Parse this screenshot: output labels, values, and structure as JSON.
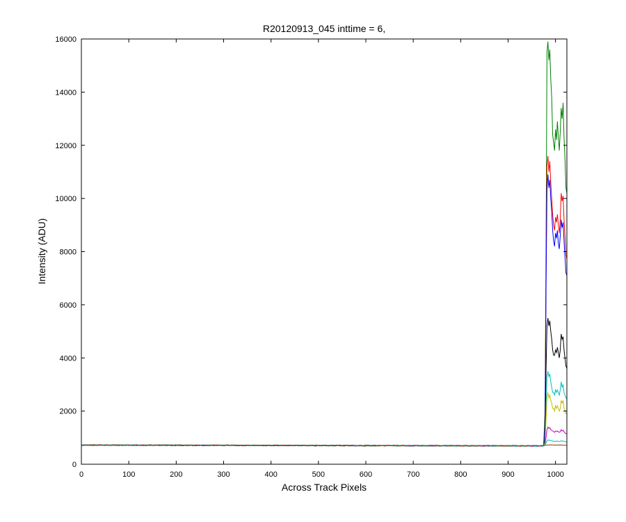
{
  "chart_data": {
    "type": "line",
    "title": "R20120913_045 inttime = 6,",
    "xlabel": "Across Track Pixels",
    "ylabel": "Intensity (ADU)",
    "xlim": [
      0,
      1024
    ],
    "ylim": [
      0,
      16000
    ],
    "xticks": [
      0,
      100,
      200,
      300,
      400,
      500,
      600,
      700,
      800,
      900,
      1000
    ],
    "yticks": [
      0,
      2000,
      4000,
      6000,
      8000,
      10000,
      12000,
      14000,
      16000
    ],
    "grid": false,
    "legend": "none",
    "baseline": {
      "x": [
        0,
        975
      ],
      "y_start": 720,
      "y_end": 690
    },
    "series": [
      {
        "color": "#008000",
        "x": [
          975,
          978,
          980,
          982,
          984,
          986,
          988,
          990,
          992,
          994,
          996,
          998,
          1000,
          1002,
          1004,
          1006,
          1008,
          1010,
          1012,
          1014,
          1016,
          1018,
          1020,
          1022,
          1024
        ],
        "y": [
          700,
          2000,
          8000,
          15500,
          15900,
          15200,
          15600,
          14500,
          13800,
          12400,
          12100,
          11800,
          12600,
          12200,
          12900,
          12300,
          11800,
          12500,
          13400,
          13000,
          13600,
          12300,
          11500,
          10400,
          10200
        ]
      },
      {
        "color": "#ff0000",
        "x": [
          975,
          978,
          980,
          982,
          984,
          986,
          988,
          990,
          992,
          994,
          996,
          998,
          1000,
          1002,
          1004,
          1006,
          1008,
          1010,
          1012,
          1014,
          1016,
          1018,
          1020,
          1022,
          1024
        ],
        "y": [
          700,
          1500,
          7000,
          11200,
          11600,
          11000,
          11400,
          10600,
          10000,
          9400,
          9000,
          8800,
          9300,
          9100,
          9400,
          9000,
          8700,
          9200,
          10200,
          9900,
          10100,
          9200,
          8600,
          7900,
          7700
        ]
      },
      {
        "color": "#0000ff",
        "x": [
          975,
          978,
          980,
          982,
          984,
          986,
          988,
          990,
          992,
          994,
          996,
          998,
          1000,
          1002,
          1004,
          1006,
          1008,
          1010,
          1012,
          1014,
          1016,
          1018,
          1020,
          1022,
          1024
        ],
        "y": [
          700,
          1400,
          6500,
          10300,
          10900,
          10400,
          10700,
          10000,
          9500,
          8800,
          8400,
          8200,
          8700,
          8500,
          8800,
          8300,
          8100,
          8600,
          9200,
          8900,
          9100,
          8400,
          7800,
          7200,
          7100
        ]
      },
      {
        "color": "#000000",
        "x": [
          975,
          978,
          980,
          982,
          984,
          986,
          988,
          990,
          992,
          994,
          996,
          998,
          1000,
          1002,
          1004,
          1006,
          1008,
          1010,
          1012,
          1014,
          1016,
          1018,
          1020,
          1022,
          1024
        ],
        "y": [
          700,
          1000,
          3500,
          5200,
          5500,
          5200,
          5400,
          5000,
          4700,
          4300,
          4100,
          4100,
          4300,
          4200,
          4400,
          4200,
          4000,
          4300,
          4900,
          4700,
          4800,
          4300,
          4000,
          3700,
          3600
        ]
      },
      {
        "color": "#00bfbf",
        "x": [
          975,
          978,
          980,
          982,
          984,
          986,
          988,
          990,
          992,
          994,
          996,
          998,
          1000,
          1002,
          1004,
          1006,
          1008,
          1010,
          1012,
          1014,
          1016,
          1018,
          1020,
          1022,
          1024
        ],
        "y": [
          700,
          850,
          2000,
          3300,
          3500,
          3300,
          3400,
          3100,
          2900,
          2700,
          2700,
          2600,
          2800,
          2700,
          2800,
          2700,
          2600,
          2800,
          3100,
          2900,
          3000,
          2700,
          2600,
          2500,
          2450
        ]
      },
      {
        "color": "#bfbf00",
        "x": [
          975,
          978,
          980,
          982,
          984,
          986,
          988,
          990,
          992,
          994,
          996,
          998,
          1000,
          1002,
          1004,
          1006,
          1008,
          1010,
          1012,
          1014,
          1016,
          1018,
          1020,
          1022,
          1024
        ],
        "y": [
          700,
          800,
          1600,
          2500,
          2700,
          2500,
          2600,
          2400,
          2300,
          2100,
          2100,
          2000,
          2200,
          2100,
          2200,
          2100,
          2000,
          2100,
          2400,
          2300,
          2400,
          2100,
          2000,
          1900,
          1900
        ]
      },
      {
        "color": "#bf00bf",
        "x": [
          975,
          978,
          980,
          982,
          984,
          986,
          988,
          990,
          992,
          994,
          996,
          998,
          1000,
          1002,
          1004,
          1006,
          1008,
          1010,
          1012,
          1014,
          1016,
          1018,
          1020,
          1022,
          1024
        ],
        "y": [
          700,
          760,
          1000,
          1300,
          1400,
          1350,
          1380,
          1300,
          1280,
          1250,
          1230,
          1200,
          1250,
          1230,
          1250,
          1220,
          1200,
          1220,
          1300,
          1250,
          1280,
          1220,
          1180,
          1150,
          1150
        ]
      },
      {
        "color": "#00bfbf",
        "x": [
          975,
          978,
          980,
          982,
          984,
          986,
          988,
          990,
          992,
          994,
          996,
          998,
          1000,
          1002,
          1004,
          1006,
          1008,
          1010,
          1012,
          1014,
          1016,
          1018,
          1020,
          1022,
          1024
        ],
        "y": [
          700,
          740,
          800,
          880,
          920,
          900,
          910,
          890,
          880,
          870,
          860,
          850,
          870,
          860,
          870,
          860,
          850,
          860,
          880,
          870,
          875,
          860,
          850,
          840,
          840
        ]
      },
      {
        "color": "#804000",
        "x": [
          975,
          980,
          990,
          1000,
          1010,
          1020,
          1024
        ],
        "y": [
          700,
          720,
          730,
          720,
          725,
          715,
          715
        ]
      }
    ]
  }
}
